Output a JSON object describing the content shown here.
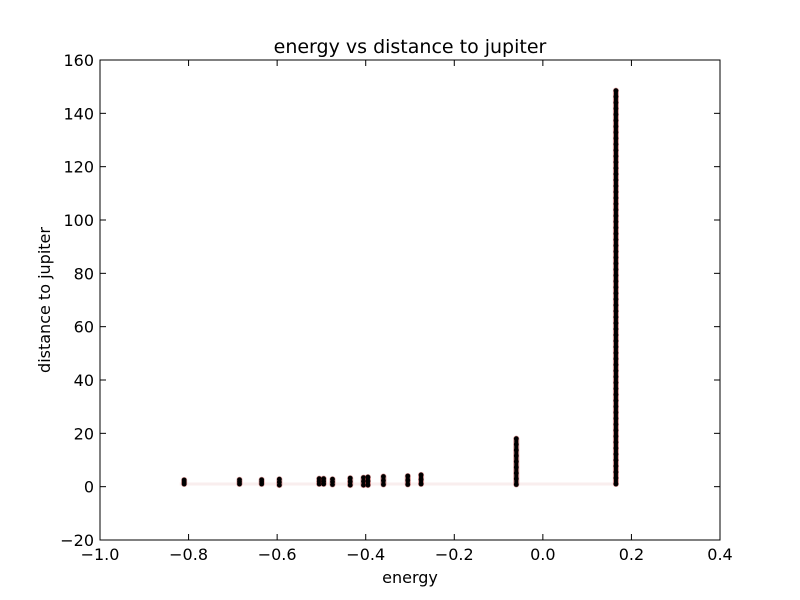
{
  "chart_data": {
    "type": "scatter",
    "title": "energy vs distance to jupiter",
    "xlabel": "energy",
    "ylabel": "distance to jupiter",
    "xlim": [
      -1.0,
      0.4
    ],
    "ylim": [
      -20,
      160
    ],
    "xticks": [
      -1.0,
      -0.8,
      -0.6,
      -0.4,
      -0.2,
      0.0,
      0.2,
      0.4
    ],
    "yticks": [
      -20,
      0,
      20,
      40,
      60,
      80,
      100,
      120,
      140,
      160
    ],
    "xtick_labels": [
      "−1.0",
      "−0.8",
      "−0.6",
      "−0.4",
      "−0.2",
      "0.0",
      "0.2",
      "0.4"
    ],
    "ytick_labels": [
      "−20",
      "0",
      "20",
      "40",
      "60",
      "80",
      "100",
      "120",
      "140",
      "160"
    ],
    "grid": false,
    "marker_color": "#000000",
    "trail_color": "#b22222",
    "clusters": [
      {
        "x": -0.81,
        "ymin": 1.0,
        "ymax": 2.5
      },
      {
        "x": -0.685,
        "ymin": 1.0,
        "ymax": 2.6
      },
      {
        "x": -0.635,
        "ymin": 1.0,
        "ymax": 2.6
      },
      {
        "x": -0.595,
        "ymin": 0.6,
        "ymax": 2.8
      },
      {
        "x": -0.505,
        "ymin": 1.0,
        "ymax": 3.0
      },
      {
        "x": -0.495,
        "ymin": 1.0,
        "ymax": 3.0
      },
      {
        "x": -0.475,
        "ymin": 0.8,
        "ymax": 2.8
      },
      {
        "x": -0.435,
        "ymin": 0.6,
        "ymax": 3.2
      },
      {
        "x": -0.405,
        "ymin": 0.6,
        "ymax": 3.4
      },
      {
        "x": -0.395,
        "ymin": 0.6,
        "ymax": 3.6
      },
      {
        "x": -0.36,
        "ymin": 0.8,
        "ymax": 3.8
      },
      {
        "x": -0.305,
        "ymin": 0.8,
        "ymax": 4.0
      },
      {
        "x": -0.275,
        "ymin": 1.0,
        "ymax": 4.4
      },
      {
        "x": -0.06,
        "ymin": 0.8,
        "ymax": 18.0
      },
      {
        "x": 0.165,
        "ymin": 1.0,
        "ymax": 148.5
      }
    ]
  }
}
